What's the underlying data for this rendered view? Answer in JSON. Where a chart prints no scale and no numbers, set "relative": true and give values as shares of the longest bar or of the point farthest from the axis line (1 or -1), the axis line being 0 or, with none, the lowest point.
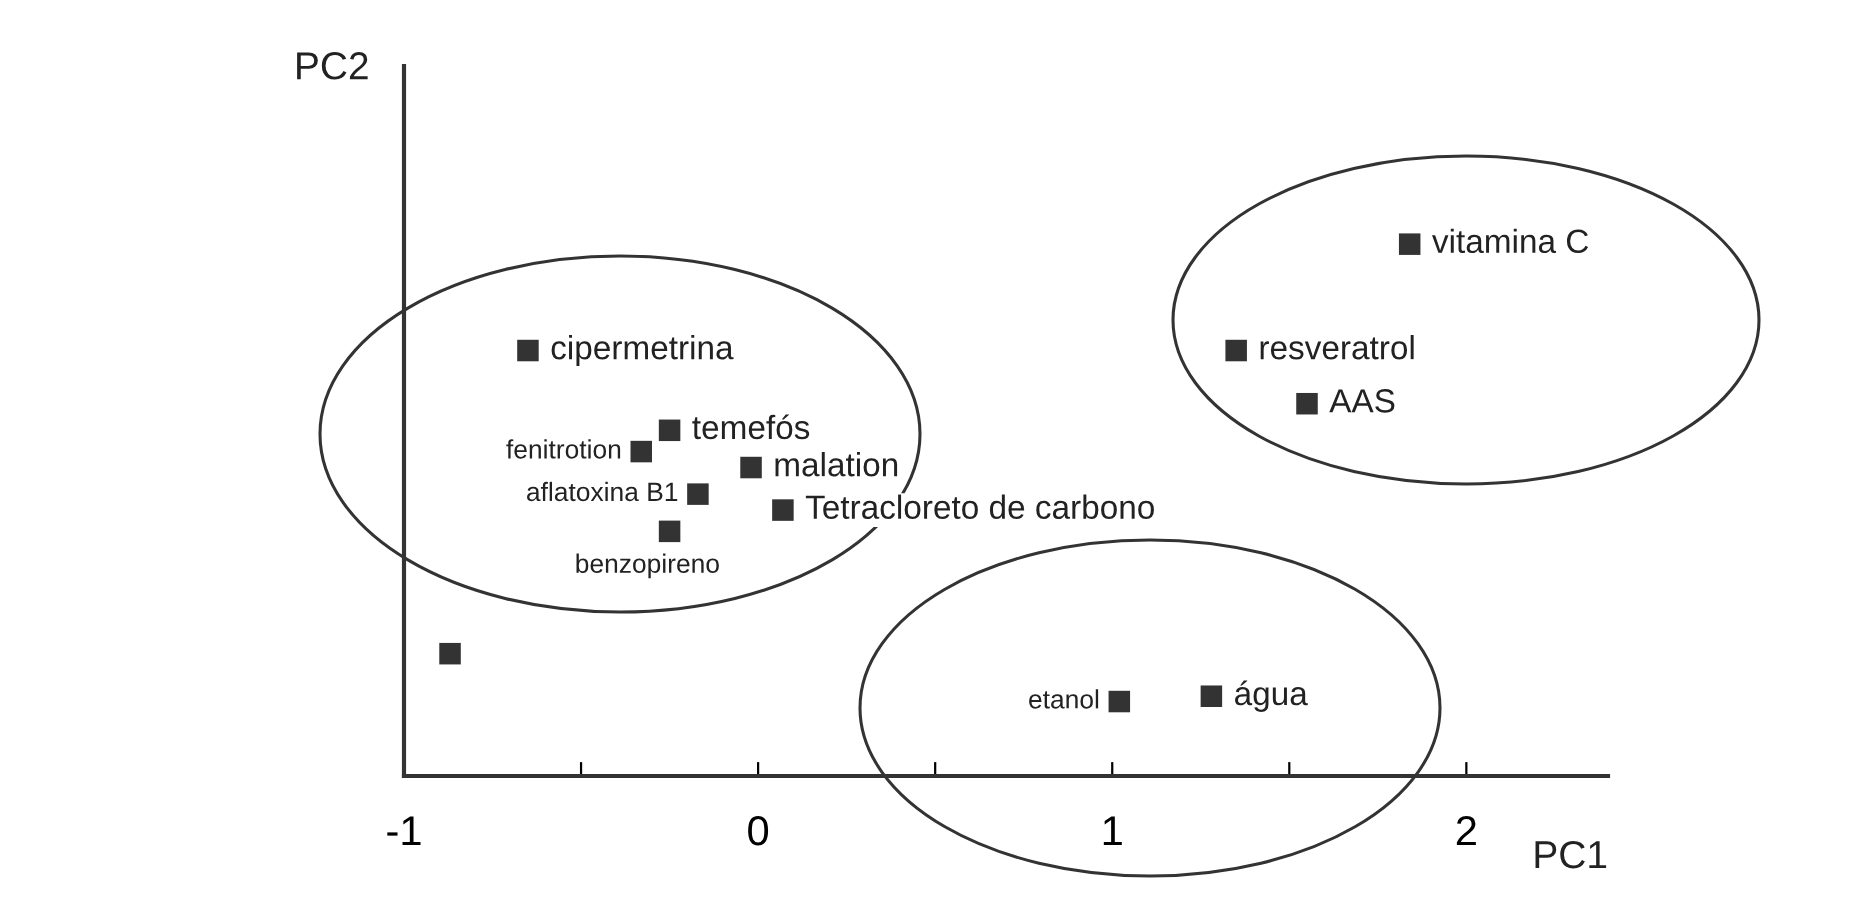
{
  "chart_data": {
    "type": "scatter",
    "xlabel": "PC1",
    "ylabel": "PC2",
    "relative": true,
    "xlim": [
      -1,
      2.4
    ],
    "xticks": [
      -1,
      {
        "value": -0.5,
        "label": null
      },
      0,
      {
        "value": 0.5,
        "label": null
      },
      1,
      {
        "value": 1.5,
        "label": null
      },
      2
    ],
    "marker": "square",
    "grid": false,
    "legend": false,
    "series": [
      {
        "color": "#333333",
        "x": [
          1.84,
          1.35,
          1.55,
          -0.65,
          -0.25,
          -0.33,
          -0.02,
          -0.17,
          0.07,
          -0.25,
          -0.87,
          1.02,
          1.28
        ],
        "values": [
          1,
          0.8,
          0.7,
          0.8,
          0.65,
          0.61,
          0.58,
          0.53,
          0.5,
          0.46,
          0.23,
          0.14,
          0.15
        ]
      }
    ],
    "annotations": [
      {
        "text": "vitamina C",
        "x": 1.84,
        "y": 1
      },
      {
        "text": "resveratrol",
        "x": 1.35,
        "y": 0.8
      },
      {
        "text": "AAS",
        "x": 1.55,
        "y": 0.7
      },
      {
        "text": "cipermetrina",
        "x": -0.65,
        "y": 0.8
      },
      {
        "text": "temefós",
        "x": -0.25,
        "y": 0.65
      },
      {
        "text": "fenitrotion",
        "x": -0.33,
        "y": 0.61
      },
      {
        "text": "malation",
        "x": -0.02,
        "y": 0.58
      },
      {
        "text": "aflatoxina B1",
        "x": -0.17,
        "y": 0.53
      },
      {
        "text": "Tetracloreto de carbono",
        "x": 0.07,
        "y": 0.5
      },
      {
        "text": "benzopireno",
        "x": -0.25,
        "y": 0.46
      },
      {
        "text": "etanol",
        "x": 1.02,
        "y": 0.14
      },
      {
        "text": "água",
        "x": 1.28,
        "y": 0.15
      }
    ]
  }
}
